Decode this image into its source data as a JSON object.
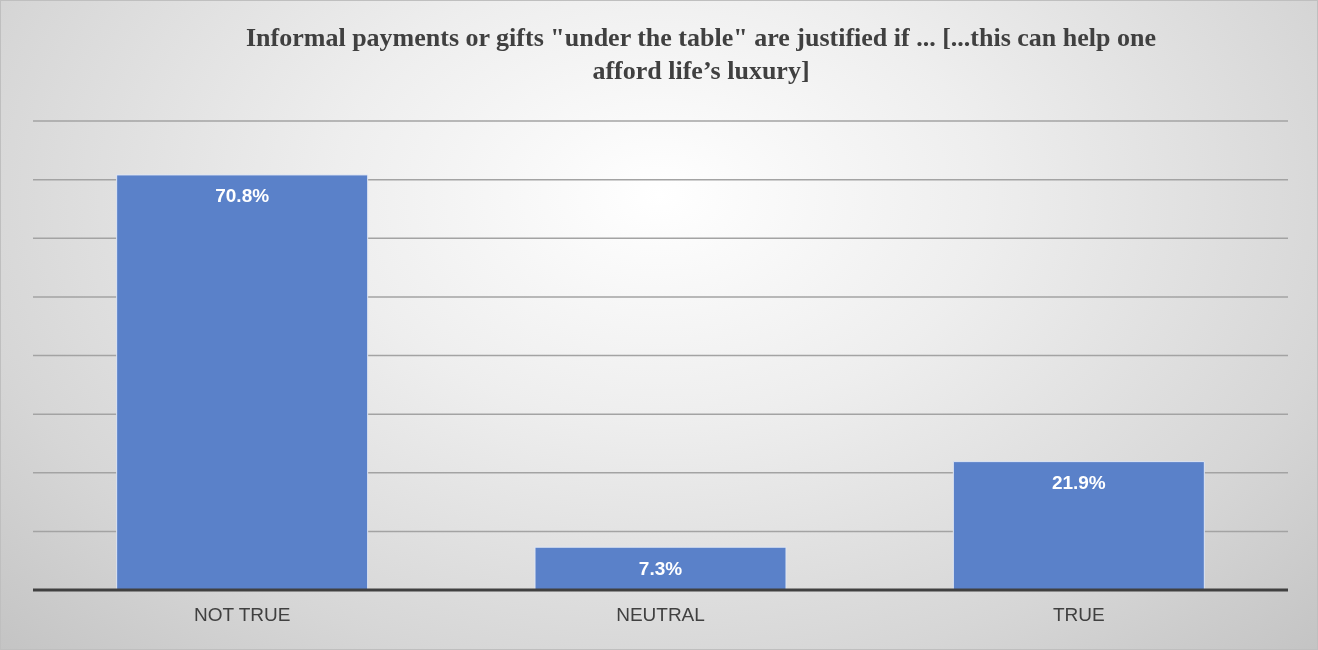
{
  "chart_data": {
    "type": "bar",
    "title": "Informal payments or gifts \"under the table\" are justified if ... [...this can help one afford life’s luxury]",
    "categories": [
      "NOT TRUE",
      "NEUTRAL",
      "TRUE"
    ],
    "values": [
      70.8,
      7.3,
      21.9
    ],
    "value_labels": [
      "70.8%",
      "7.3%",
      "21.9%"
    ],
    "color": "#5a81c9",
    "ylim": [
      0,
      80
    ],
    "yticks": [
      0,
      10,
      20,
      30,
      40,
      50,
      60,
      70,
      80
    ],
    "grid": "y",
    "tick_labels": "x"
  }
}
